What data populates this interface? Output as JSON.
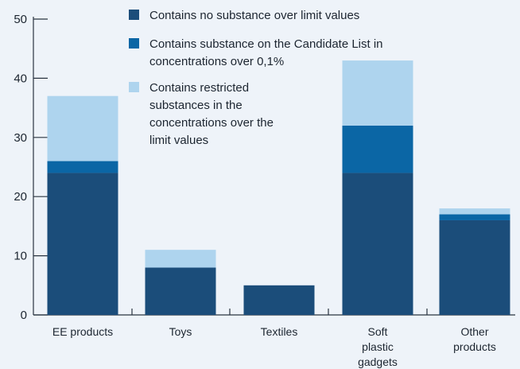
{
  "chart_data": {
    "type": "bar",
    "stacked": true,
    "categories": [
      [
        "EE products"
      ],
      [
        "Toys"
      ],
      [
        "Textiles"
      ],
      [
        "Soft",
        "plastic",
        "gadgets"
      ],
      [
        "Other",
        "products"
      ]
    ],
    "series": [
      {
        "name": "Contains no substance over limit values",
        "name_lines": [
          "Contains no substance over limit values"
        ],
        "color": "#1b4d7a",
        "values": [
          24,
          8,
          5,
          24,
          16
        ]
      },
      {
        "name": "Contains substance on the Candidate List in concentrations over 0,1%",
        "name_lines": [
          "Contains substance on the Candidate List in",
          "concentrations over 0,1%"
        ],
        "color": "#0b66a5",
        "values": [
          2,
          0,
          0,
          8,
          1
        ]
      },
      {
        "name": "Contains restricted substances in the concentrations over the limit values",
        "name_lines": [
          "Contains restricted",
          "substances in the",
          "concentrations over the",
          "limit values"
        ],
        "color": "#aed4ee",
        "values": [
          11,
          3,
          0,
          11,
          1
        ]
      }
    ],
    "ylim": [
      0,
      50
    ],
    "yticks": [
      "0",
      "10",
      "20",
      "30",
      "40",
      "50"
    ],
    "xlabel": "",
    "ylabel": "",
    "legend": "top-center",
    "grid": false
  }
}
